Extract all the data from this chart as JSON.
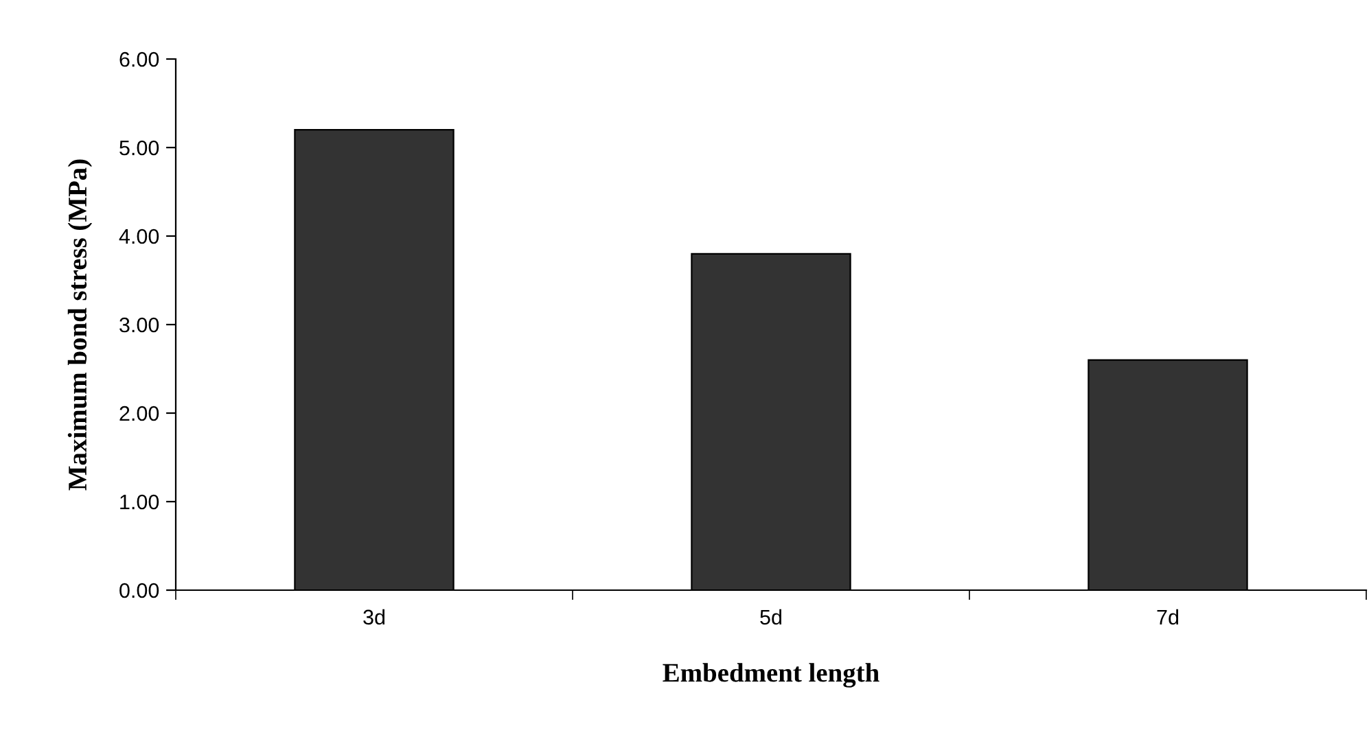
{
  "chart_data": {
    "type": "bar",
    "xlabel": "Embedment length",
    "ylabel": "Maximum bond stress (MPa)",
    "categories": [
      "3d",
      "5d",
      "7d"
    ],
    "values": [
      5.2,
      3.8,
      2.6
    ],
    "color": "#333333",
    "ylim": [
      0,
      6
    ],
    "yticks": [
      {
        "value": 0,
        "label": "0.00"
      },
      {
        "value": 1,
        "label": "1.00"
      },
      {
        "value": 2,
        "label": "2.00"
      },
      {
        "value": 3,
        "label": "3.00"
      },
      {
        "value": 4,
        "label": "4.00"
      },
      {
        "value": 5,
        "label": "5.00"
      },
      {
        "value": 6,
        "label": "6.00"
      }
    ],
    "grid": false,
    "legend": false
  }
}
